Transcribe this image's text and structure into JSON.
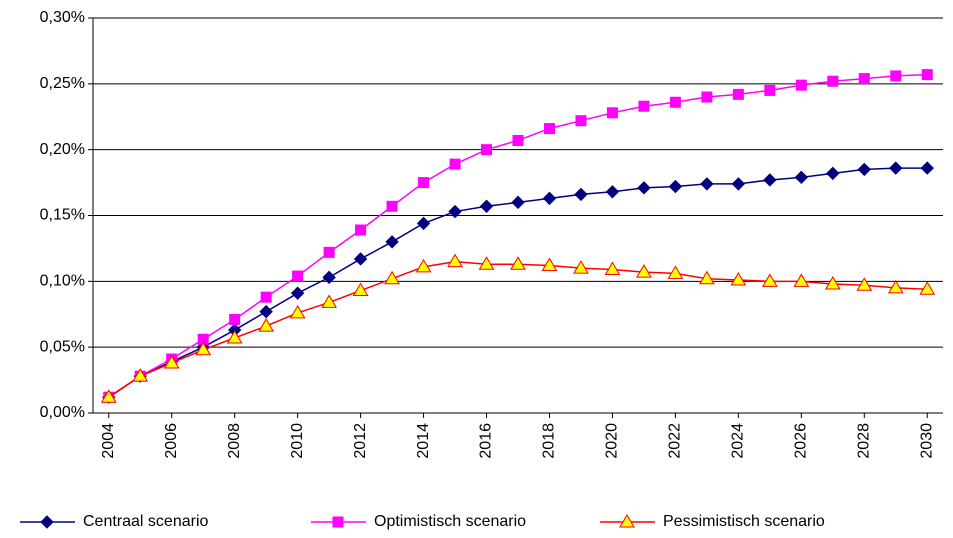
{
  "chart_data": {
    "type": "line",
    "x": [
      2004,
      2005,
      2006,
      2007,
      2008,
      2009,
      2010,
      2011,
      2012,
      2013,
      2014,
      2015,
      2016,
      2017,
      2018,
      2019,
      2020,
      2021,
      2022,
      2023,
      2024,
      2025,
      2026,
      2027,
      2028,
      2029,
      2030
    ],
    "xlim": [
      2003.5,
      2030.5
    ],
    "xticks": [
      2004,
      2006,
      2008,
      2010,
      2012,
      2014,
      2016,
      2018,
      2020,
      2022,
      2024,
      2026,
      2028,
      2030
    ],
    "ylim": [
      0,
      0.3
    ],
    "yticks": [
      {
        "value": 0,
        "label": "0,00%"
      },
      {
        "value": 0.05,
        "label": "0,05%"
      },
      {
        "value": 0.1,
        "label": "0,10%"
      },
      {
        "value": 0.15,
        "label": "0,15%"
      },
      {
        "value": 0.2,
        "label": "0,20%"
      },
      {
        "value": 0.25,
        "label": "0,25%"
      },
      {
        "value": 0.3,
        "label": "0,30%"
      }
    ],
    "grid": true,
    "legend": "bottom",
    "series": [
      {
        "name": "Centraal scenario",
        "color": "#000080",
        "marker": "diamond",
        "marker_fill": "#000080",
        "values": [
          0.012,
          0.028,
          0.039,
          0.05,
          0.063,
          0.077,
          0.091,
          0.103,
          0.117,
          0.13,
          0.144,
          0.153,
          0.157,
          0.16,
          0.163,
          0.166,
          0.168,
          0.171,
          0.172,
          0.174,
          0.174,
          0.177,
          0.179,
          0.182,
          0.185,
          0.186,
          0.186
        ]
      },
      {
        "name": "Optimistisch scenario",
        "color": "#ff00ff",
        "marker": "square",
        "marker_fill": "#ff00ff",
        "values": [
          0.012,
          0.028,
          0.041,
          0.056,
          0.071,
          0.088,
          0.104,
          0.122,
          0.139,
          0.157,
          0.175,
          0.189,
          0.2,
          0.207,
          0.216,
          0.222,
          0.228,
          0.233,
          0.236,
          0.24,
          0.242,
          0.245,
          0.249,
          0.252,
          0.254,
          0.256,
          0.257
        ]
      },
      {
        "name": "Pessimistisch scenario",
        "color": "#ff0000",
        "marker": "triangle",
        "marker_fill": "#ffff00",
        "values": [
          0.012,
          0.028,
          0.038,
          0.048,
          0.057,
          0.066,
          0.076,
          0.084,
          0.093,
          0.102,
          0.111,
          0.115,
          0.113,
          0.113,
          0.112,
          0.11,
          0.109,
          0.107,
          0.106,
          0.102,
          0.101,
          0.1,
          0.1,
          0.098,
          0.097,
          0.095,
          0.094
        ]
      }
    ]
  }
}
